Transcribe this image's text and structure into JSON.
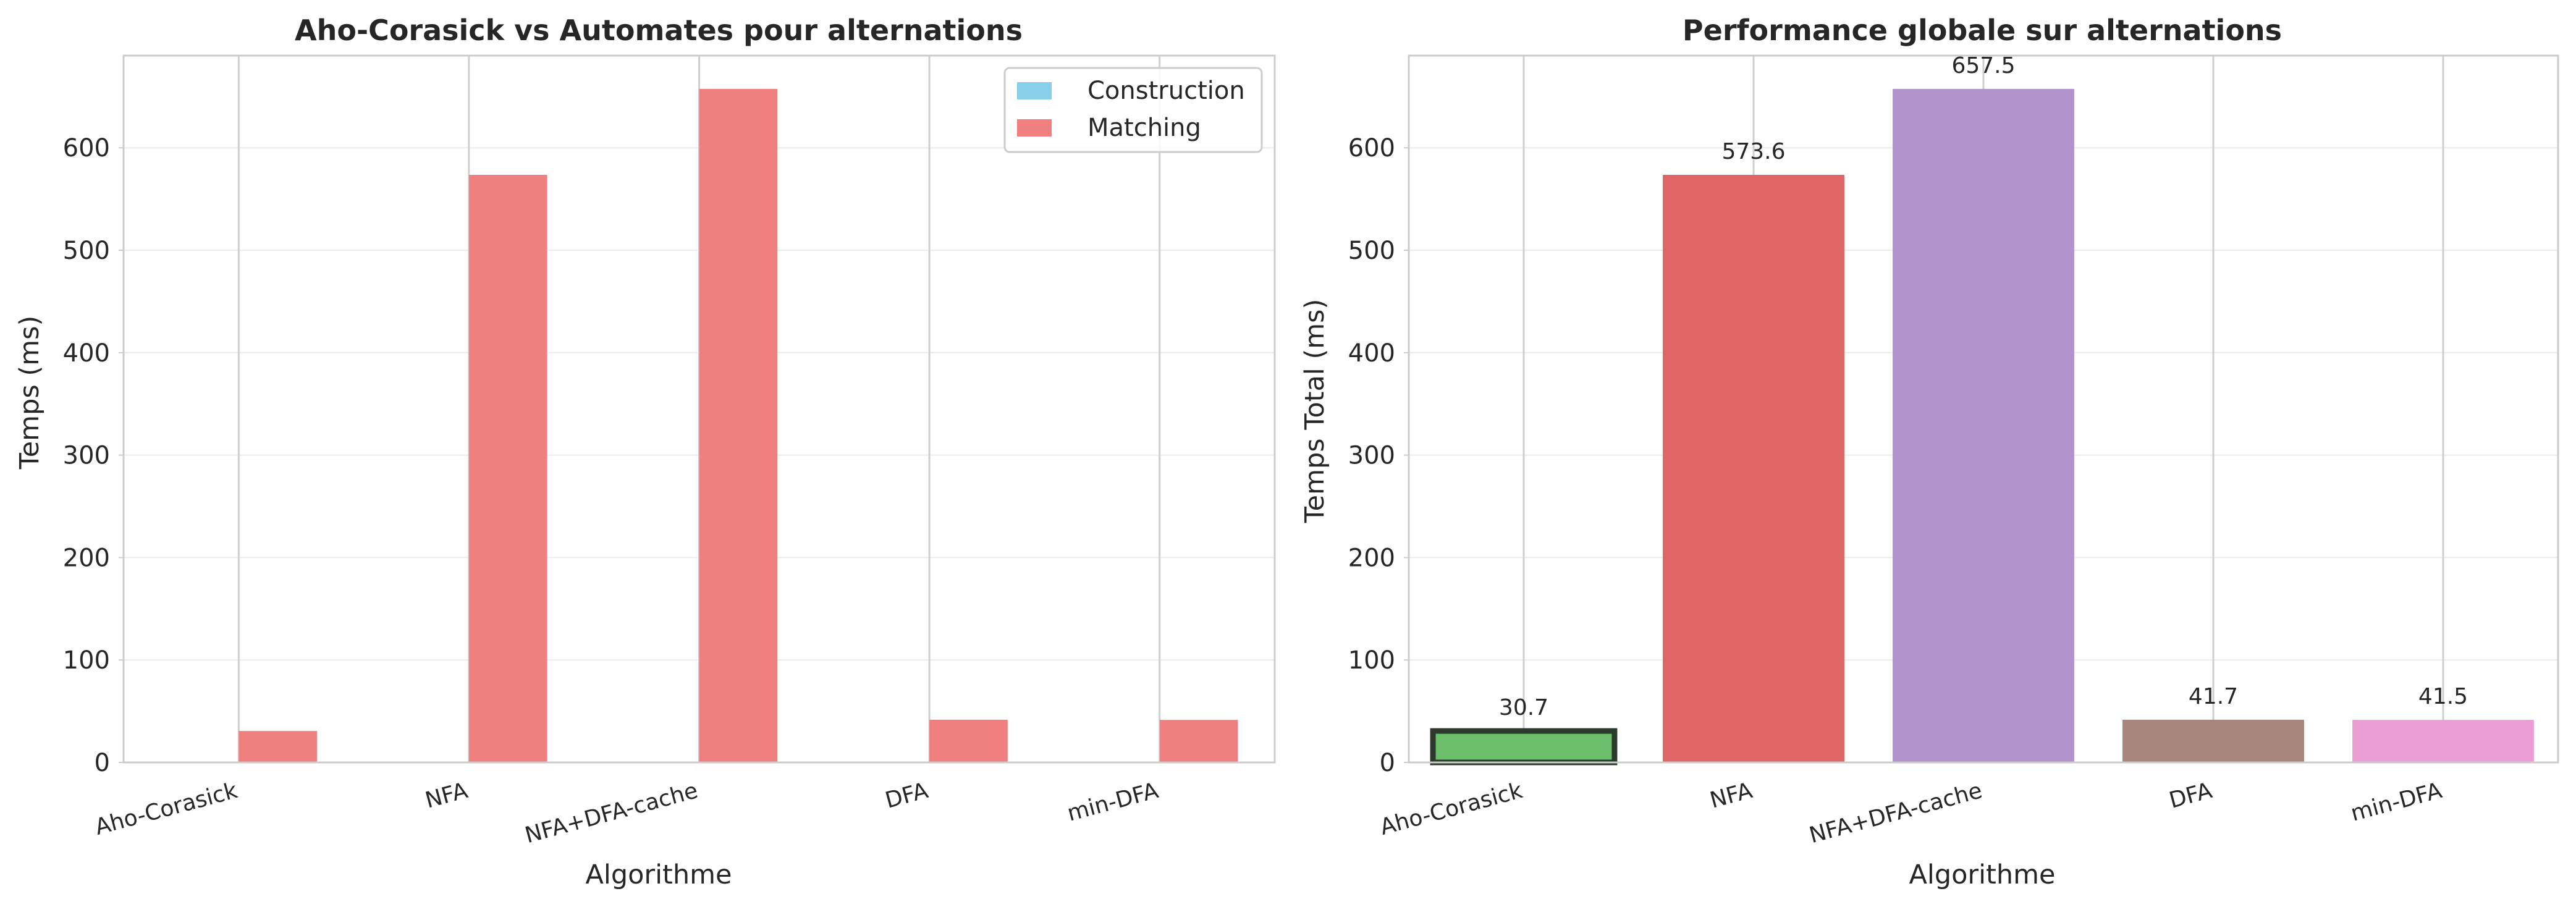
{
  "chart_data": [
    {
      "type": "bar",
      "title": "Aho-Corasick vs Automates pour alternations",
      "xlabel": "Algorithme",
      "ylabel": "Temps (ms)",
      "categories": [
        "Aho-Corasick",
        "NFA",
        "NFA+DFA-cache",
        "DFA",
        "min-DFA"
      ],
      "ylim": [
        0,
        690
      ],
      "yticks": [
        0,
        100,
        200,
        300,
        400,
        500,
        600
      ],
      "grid": true,
      "legend_position": "top-right",
      "series": [
        {
          "name": "Construction",
          "color": "#87CEEB",
          "values": [
            0,
            0,
            0,
            0,
            0
          ]
        },
        {
          "name": "Matching",
          "color": "#F08080",
          "values": [
            30.7,
            573.6,
            657.5,
            41.7,
            41.5
          ]
        }
      ]
    },
    {
      "type": "bar",
      "title": "Performance globale sur alternations",
      "xlabel": "Algorithme",
      "ylabel": "Temps Total (ms)",
      "categories": [
        "Aho-Corasick",
        "NFA",
        "NFA+DFA-cache",
        "DFA",
        "min-DFA"
      ],
      "ylim": [
        0,
        690
      ],
      "yticks": [
        0,
        100,
        200,
        300,
        400,
        500,
        600
      ],
      "grid": true,
      "values": [
        30.7,
        573.6,
        657.5,
        41.7,
        41.5
      ],
      "value_labels": [
        "30.7",
        "573.6",
        "657.5",
        "41.7",
        "41.5"
      ],
      "colors": [
        "#6BBE6B",
        "#E06666",
        "#B192CC",
        "#A8867D",
        "#EC9ED4"
      ],
      "highlight_index": 0,
      "highlight_edge_color": "#2B3A2B"
    }
  ]
}
